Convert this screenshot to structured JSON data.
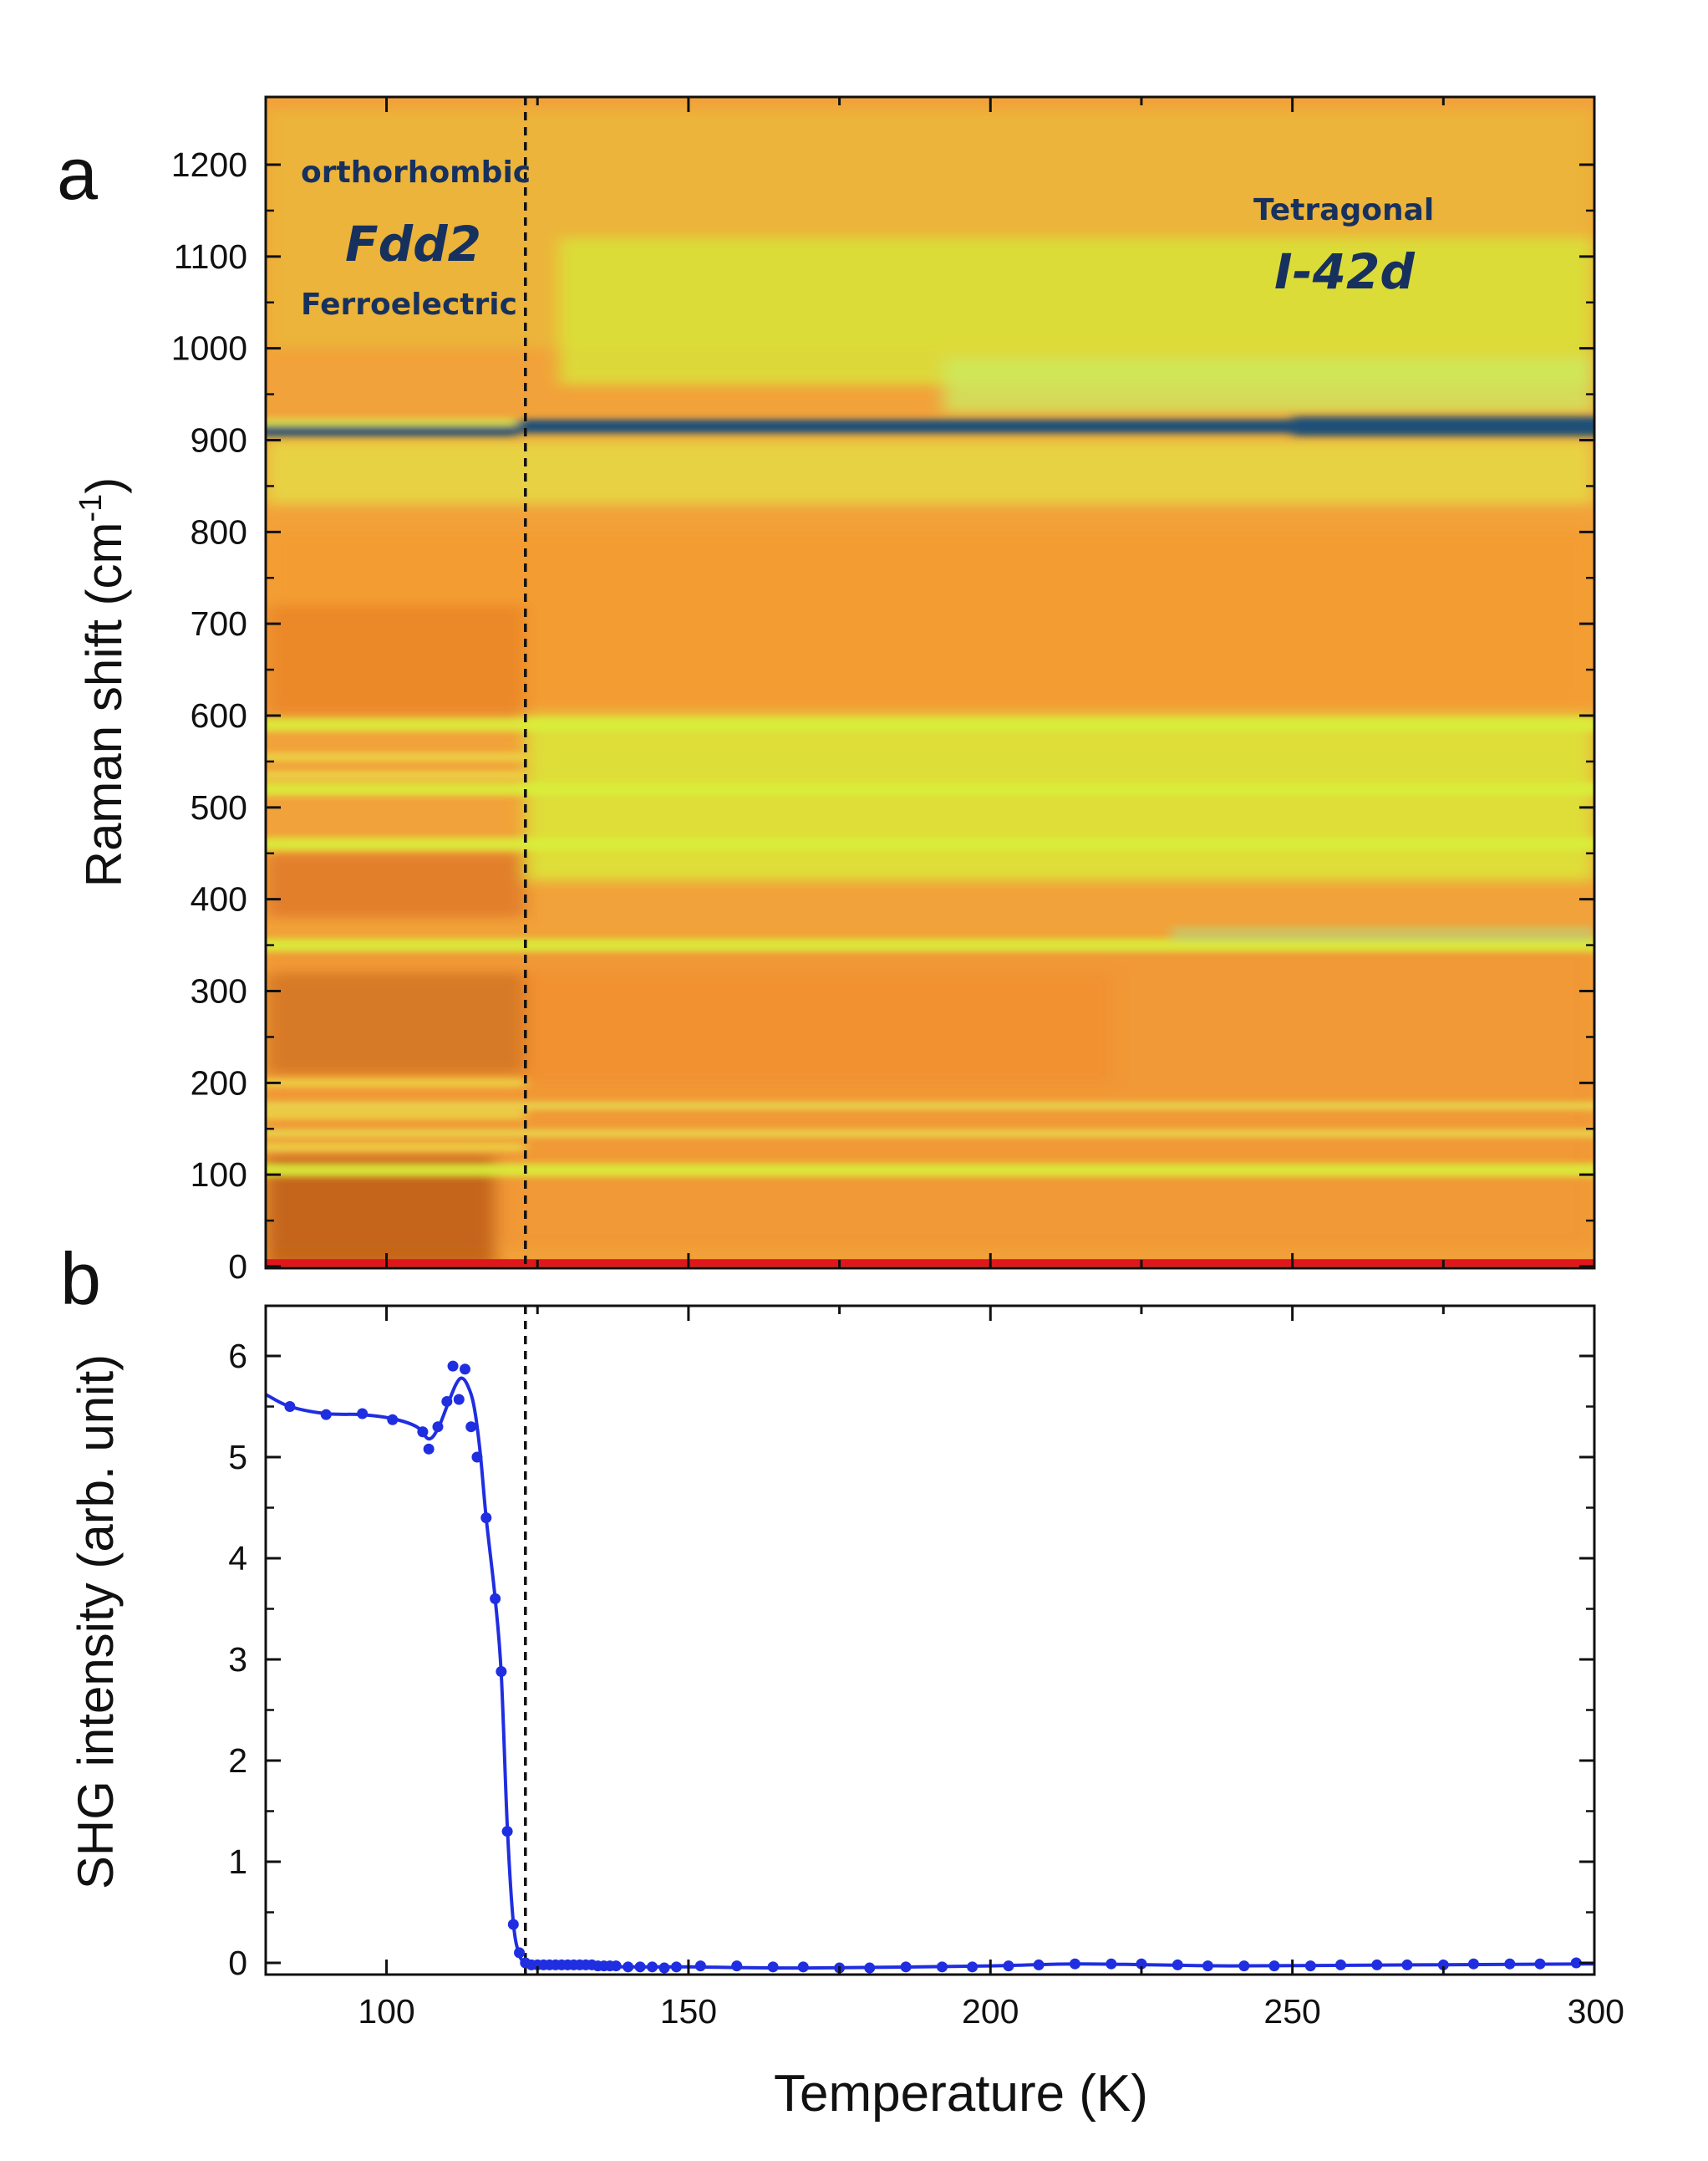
{
  "colors": {
    "line": "#1f2ee0",
    "dashed": "#111111",
    "phase_text": "#17315f",
    "heat_orange": "#f2a23a",
    "heat_dark": "#b55316",
    "heat_yellow": "#d9ee3a",
    "heat_blue": "#1b4f78",
    "baseline_red": "#e0161c"
  },
  "chart_data": [
    {
      "panel": "a",
      "type": "heatmap",
      "ylabel": "Raman shift (cm",
      "ylabel_sup": "-1",
      "ylabel_close": ")",
      "xlim": [
        80,
        300
      ],
      "ylim": [
        0,
        1260
      ],
      "yticks": [
        0,
        100,
        200,
        300,
        400,
        500,
        600,
        700,
        800,
        900,
        1000,
        1100,
        1200
      ],
      "transition_temperature": 123,
      "annotations": {
        "left_phase_top": "orthorhombic",
        "left_phase_group": "Fdd2",
        "left_phase_bottom": "Ferroelectric",
        "right_phase_top": "Tetragonal",
        "right_phase_group": "I-42d"
      },
      "bands": [
        {
          "shift": 915,
          "intensity": "strong",
          "color": "blue"
        },
        {
          "shift": 590,
          "intensity": "medium",
          "color": "yellow"
        },
        {
          "shift": 520,
          "intensity": "medium",
          "color": "yellow"
        },
        {
          "shift": 460,
          "intensity": "medium",
          "color": "yellow"
        },
        {
          "shift": 350,
          "intensity": "medium",
          "color": "yellow"
        },
        {
          "shift": 175,
          "intensity": "weak",
          "color": "yellow"
        },
        {
          "shift": 145,
          "intensity": "weak",
          "color": "yellow"
        },
        {
          "shift": 105,
          "intensity": "medium",
          "color": "yellow"
        }
      ]
    },
    {
      "panel": "b",
      "type": "line",
      "ylabel": "SHG intensity (arb. unit)",
      "xlabel": "Temperature (K)",
      "xlim": [
        80,
        300
      ],
      "ylim": [
        -0.1,
        6.5
      ],
      "xticks": [
        100,
        150,
        200,
        250,
        300
      ],
      "yticks": [
        0,
        1,
        2,
        3,
        4,
        5,
        6
      ],
      "transition_temperature": 123,
      "series": [
        {
          "name": "SHG",
          "x": [
            84,
            90,
            96,
            101,
            106,
            107,
            108.5,
            110,
            111,
            112,
            113,
            114,
            115,
            116.5,
            118,
            119,
            120,
            121,
            122,
            123,
            124,
            125,
            126,
            127,
            128,
            129,
            130,
            131,
            132,
            133,
            134,
            135,
            136,
            137,
            138,
            140,
            142,
            144,
            146,
            148,
            152,
            158,
            164,
            169,
            175,
            180,
            186,
            192,
            197,
            203,
            208,
            214,
            220,
            225,
            231,
            236,
            242,
            247,
            253,
            258,
            264,
            269,
            275,
            280,
            286,
            291,
            297
          ],
          "values": [
            5.5,
            5.42,
            5.43,
            5.37,
            5.25,
            5.08,
            5.3,
            5.55,
            5.9,
            5.57,
            5.87,
            5.3,
            5.0,
            4.4,
            3.6,
            2.88,
            1.3,
            0.38,
            0.1,
            0.0,
            -0.02,
            -0.02,
            -0.02,
            -0.02,
            -0.02,
            -0.02,
            -0.02,
            -0.02,
            -0.02,
            -0.02,
            -0.02,
            -0.03,
            -0.03,
            -0.03,
            -0.03,
            -0.04,
            -0.04,
            -0.04,
            -0.05,
            -0.04,
            -0.03,
            -0.03,
            -0.04,
            -0.04,
            -0.05,
            -0.05,
            -0.04,
            -0.04,
            -0.04,
            -0.03,
            -0.02,
            -0.01,
            -0.01,
            -0.01,
            -0.02,
            -0.03,
            -0.03,
            -0.03,
            -0.03,
            -0.02,
            -0.02,
            -0.02,
            -0.02,
            -0.01,
            -0.01,
            -0.01,
            0.0
          ]
        }
      ],
      "fit_line": {
        "x": [
          80,
          84,
          90,
          96,
          101,
          105,
          107,
          108.5,
          110,
          111.5,
          112.5,
          113.5,
          114.5,
          115.5,
          116.5,
          118,
          119,
          120,
          121,
          122,
          123,
          124,
          126,
          130,
          140,
          150,
          170,
          200,
          215,
          240,
          270,
          300
        ],
        "values": [
          5.62,
          5.5,
          5.43,
          5.42,
          5.38,
          5.3,
          5.18,
          5.28,
          5.5,
          5.72,
          5.78,
          5.7,
          5.5,
          5.05,
          4.4,
          3.6,
          2.85,
          1.35,
          0.4,
          0.08,
          0.0,
          -0.02,
          -0.02,
          -0.02,
          -0.04,
          -0.04,
          -0.05,
          -0.03,
          -0.01,
          -0.03,
          -0.02,
          -0.01
        ]
      }
    }
  ],
  "labels": {
    "panel_a": "a",
    "panel_b": "b",
    "xlabel": "Temperature (K)"
  }
}
